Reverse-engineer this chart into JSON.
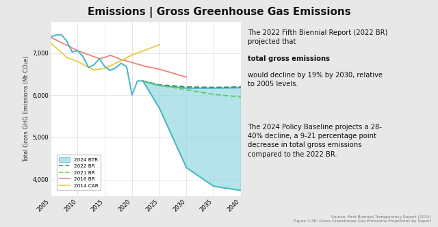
{
  "title": "Emissions | Gross Greenhouse Gas Emissions",
  "ylabel": "Total Gross GHG Emissions (Mt CO₂e)",
  "xlim": [
    2005,
    2040
  ],
  "ylim": [
    3600,
    7750
  ],
  "yticks": [
    4000,
    5000,
    6000,
    7000
  ],
  "xticks": [
    2005,
    2010,
    2015,
    2020,
    2025,
    2030,
    2035,
    2040
  ],
  "bg_color": "#e8e8e8",
  "plot_bg": "#ffffff",
  "source_text": "Source: First Biennial Transparency Report (2024)\nFigure 3-38: Gross Greenhouse Gas Emissions Projections by Report",
  "btr2024_historical": {
    "years": [
      2005,
      2006,
      2007,
      2008,
      2009,
      2010,
      2011,
      2012,
      2013,
      2014,
      2015,
      2016,
      2017,
      2018,
      2019,
      2020,
      2021,
      2022
    ],
    "values": [
      7380,
      7430,
      7440,
      7290,
      7030,
      7060,
      6920,
      6660,
      6720,
      6870,
      6680,
      6590,
      6650,
      6760,
      6680,
      6010,
      6340,
      6340
    ],
    "color": "#4bb8c4",
    "linewidth": 1.5,
    "label": "2024 BTR"
  },
  "btr2024_upper": {
    "years": [
      2022,
      2025,
      2030,
      2035,
      2040
    ],
    "values": [
      6340,
      6230,
      6170,
      6170,
      6180
    ]
  },
  "btr2024_lower": {
    "years": [
      2022,
      2025,
      2030,
      2035,
      2040
    ],
    "values": [
      6340,
      5700,
      4280,
      3840,
      3740
    ]
  },
  "br2022_line": {
    "years": [
      2022,
      2025,
      2030,
      2035,
      2040
    ],
    "values": [
      6340,
      6250,
      6200,
      6190,
      6200
    ],
    "color": "#3a8c44",
    "linewidth": 1.3,
    "label": "2022 BR"
  },
  "br2021_line": {
    "years": [
      2022,
      2025,
      2030,
      2035,
      2040
    ],
    "values": [
      6340,
      6240,
      6130,
      6020,
      5960
    ],
    "color": "#5ec85e",
    "linewidth": 1.3,
    "label": "2021 BR"
  },
  "br2016_line": {
    "years": [
      2005,
      2010,
      2014,
      2015,
      2016,
      2018,
      2020,
      2022,
      2025,
      2030
    ],
    "values": [
      7380,
      7060,
      6870,
      6900,
      6950,
      6850,
      6780,
      6700,
      6620,
      6430
    ],
    "color": "#f08080",
    "linewidth": 1.3,
    "label": "2016 BR"
  },
  "car2014_line": {
    "years": [
      2005,
      2008,
      2010,
      2013,
      2015,
      2018,
      2020,
      2022,
      2025
    ],
    "values": [
      7250,
      6900,
      6800,
      6600,
      6640,
      6820,
      6960,
      7050,
      7200
    ],
    "color": "#e8c840",
    "linewidth": 1.3,
    "label": "2014 CAR"
  },
  "fill_color": "#8dd4e0",
  "fill_alpha": 0.65
}
